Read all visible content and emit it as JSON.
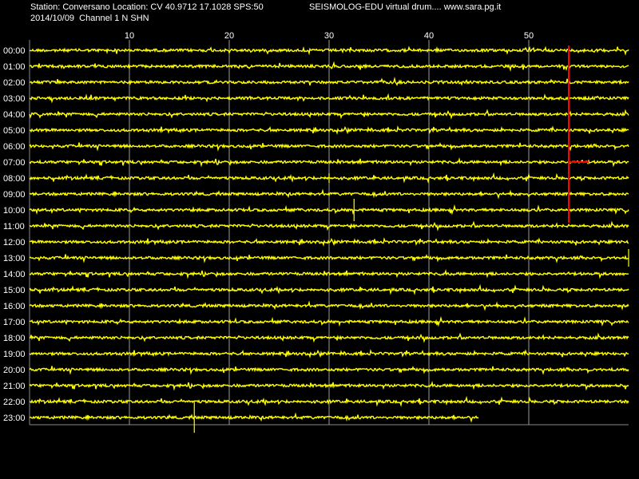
{
  "header": {
    "station_line": "Station: Conversano Location: CV 40.9712 17.1028 SPS:50",
    "title": "SEISMOLOG-EDU virtual drum.... www.sara.pg.it",
    "date_line": "2014/10/09  Channel 1 N SHN"
  },
  "chart_data": {
    "type": "line",
    "xlabel": "",
    "ylabel": "",
    "x_ticks": [
      10,
      20,
      30,
      40,
      50
    ],
    "xlim": [
      0,
      60
    ],
    "y_labels": [
      "00:00",
      "01:00",
      "02:00",
      "03:00",
      "04:00",
      "05:00",
      "06:00",
      "07:00",
      "08:00",
      "09:00",
      "10:00",
      "11:00",
      "12:00",
      "13:00",
      "14:00",
      "15:00",
      "16:00",
      "17:00",
      "18:00",
      "19:00",
      "20:00",
      "21:00",
      "22:00",
      "23:00"
    ],
    "last_row_end_minute": 45,
    "trace_color": "#ffff00",
    "event_color": "#ff0000",
    "event_marker": {
      "minute": 54,
      "row_start": 0,
      "row_end": 11,
      "horizontal_row": 7,
      "horizontal_end_minute": 56
    },
    "notable_spikes": [
      {
        "row": 10,
        "minute": 32.5,
        "amplitude": 1.4
      },
      {
        "row": 23,
        "minute": 16.5,
        "amplitude": 1.9
      },
      {
        "row": 8,
        "minute": 30,
        "amplitude": 0.6
      },
      {
        "row": 13,
        "minute": 60,
        "amplitude": 1.1
      }
    ],
    "grid": true,
    "background": "#000000"
  }
}
